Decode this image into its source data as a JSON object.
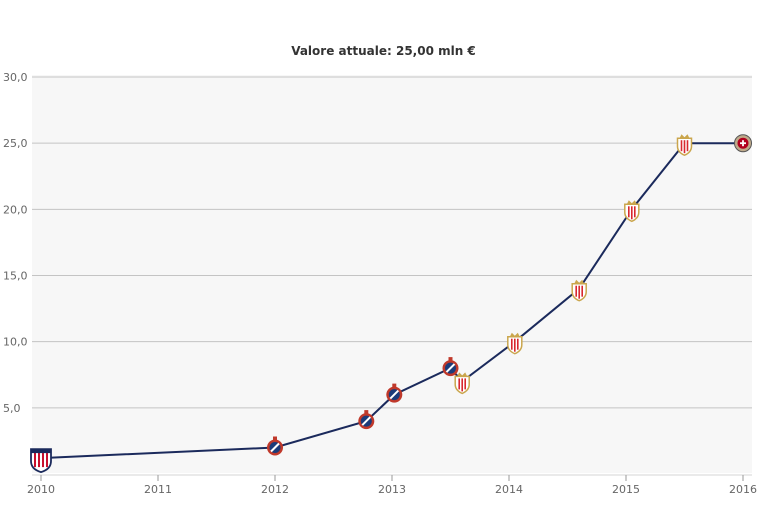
{
  "title": "Valore attuale: 25,00 mln €",
  "chart_data": {
    "type": "line",
    "title": "Valore attuale: 25,00 mln €",
    "xlabel": "",
    "ylabel": "",
    "xlim": [
      2010,
      2016
    ],
    "ylim": [
      0,
      30
    ],
    "grid": true,
    "x_ticks": [
      "2010",
      "2011",
      "2012",
      "2013",
      "2014",
      "2015",
      "2016"
    ],
    "y_ticks": [
      "5,0",
      "10,0",
      "15,0",
      "20,0",
      "25,0",
      "30,0"
    ],
    "series": [
      {
        "x": [
          2010.0,
          2012.0,
          2012.78,
          2013.02,
          2013.5,
          2013.6,
          2014.05,
          2014.6,
          2015.05,
          2015.5,
          2016.0
        ],
        "y": [
          1.2,
          2.0,
          4.0,
          6.0,
          8.0,
          7.0,
          10.0,
          14.0,
          20.0,
          25.0,
          25.0
        ],
        "club_icons": [
          "junior-badge-icon",
          "brugge-badge-icon",
          "brugge-badge-icon",
          "brugge-badge-icon",
          "brugge-badge-icon",
          "sevilla-badge-icon",
          "sevilla-badge-icon",
          "sevilla-badge-icon",
          "sevilla-badge-icon",
          "sevilla-badge-icon",
          "milan-badge-icon"
        ]
      }
    ],
    "colors": {
      "line": "#1b2a5c",
      "plot_background": "#f7f7f7",
      "grid": "#c4c4c4",
      "brugge": "#1b3b7a",
      "brugge_ring": "#c0392b",
      "sevilla": "#d8282f",
      "sevilla_gold": "#caa64d",
      "junior": "#c8102e",
      "milan": "#b2001e"
    }
  }
}
